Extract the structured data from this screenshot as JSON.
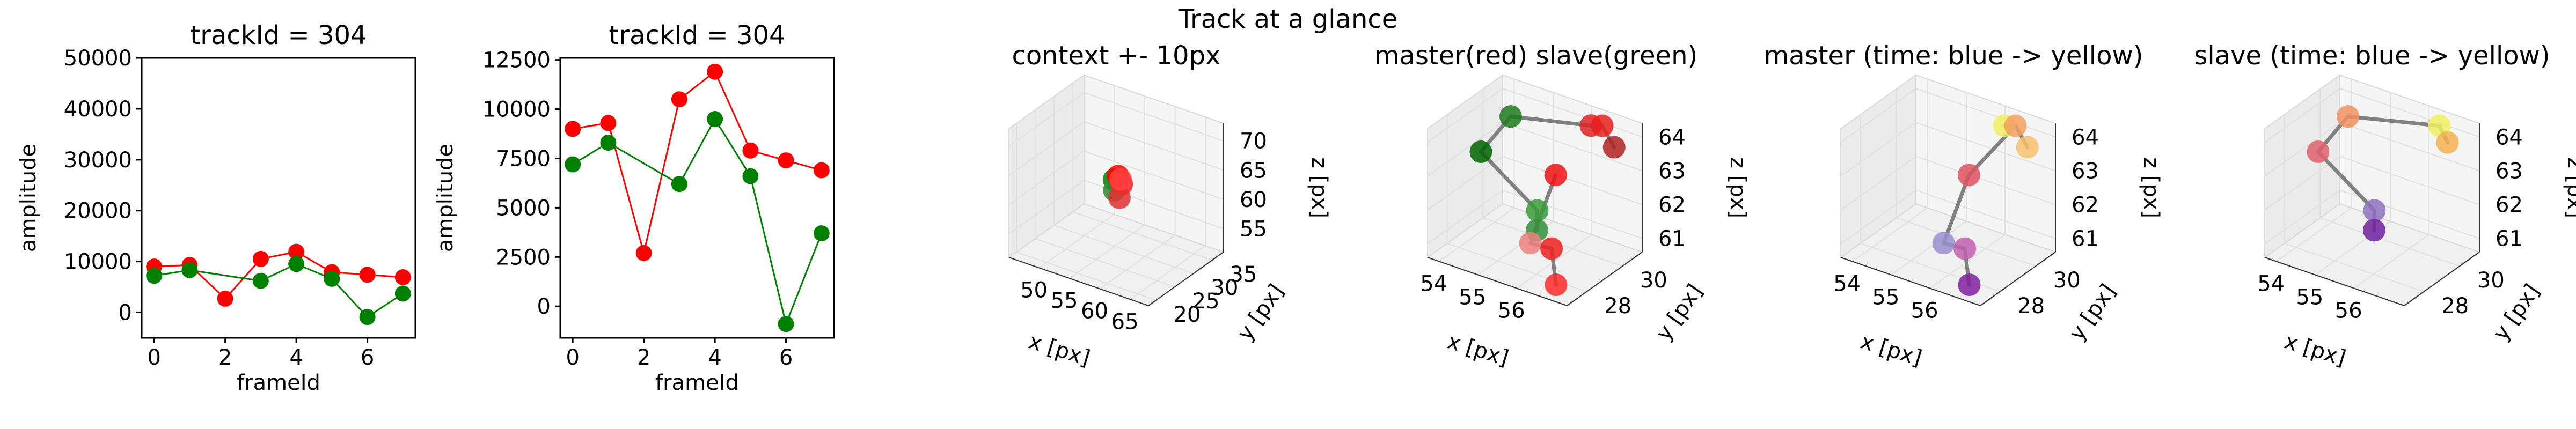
{
  "figure": {
    "suptitle": "Track at a glance"
  },
  "chart_data": [
    {
      "type": "line",
      "title": "trackId = 304",
      "xlabel": "frameId",
      "ylabel": "amplitude",
      "xlim": [
        -0.35,
        7.35
      ],
      "ylim": [
        -5000,
        50000
      ],
      "xticks": [
        0,
        2,
        4,
        6
      ],
      "yticks": [
        0,
        10000,
        20000,
        30000,
        40000,
        50000
      ],
      "x": [
        0,
        1,
        2,
        3,
        4,
        5,
        6,
        7
      ],
      "series": [
        {
          "color": "#ff0000",
          "x": [
            0,
            1,
            2,
            3,
            4,
            5,
            6,
            7
          ],
          "values": [
            9000,
            9300,
            2700,
            10500,
            11900,
            7900,
            7400,
            6900
          ]
        },
        {
          "color": "#008000",
          "x": [
            0,
            1,
            3,
            4,
            5,
            6,
            7
          ],
          "values": [
            7200,
            8300,
            6200,
            9500,
            6600,
            -900,
            3700
          ]
        }
      ]
    },
    {
      "type": "line",
      "title": "trackId = 304",
      "xlabel": "frameId",
      "ylabel": "amplitude",
      "xlim": [
        -0.35,
        7.35
      ],
      "ylim": [
        -1600,
        12600
      ],
      "xticks": [
        0,
        2,
        4,
        6
      ],
      "yticks": [
        0,
        2500,
        5000,
        7500,
        10000,
        12500
      ],
      "x": [
        0,
        1,
        2,
        3,
        4,
        5,
        6,
        7
      ],
      "series": [
        {
          "color": "#ff0000",
          "x": [
            0,
            1,
            2,
            3,
            4,
            5,
            6,
            7
          ],
          "values": [
            9000,
            9300,
            2700,
            10500,
            11900,
            7900,
            7400,
            6900
          ]
        },
        {
          "color": "#008000",
          "x": [
            0,
            1,
            3,
            4,
            5,
            6,
            7
          ],
          "values": [
            7200,
            8300,
            6200,
            9500,
            6600,
            -900,
            3700
          ]
        }
      ]
    },
    {
      "type": "scatter",
      "title": "context +- 10px",
      "xlabel": "x [px]",
      "ylabel": "y [px]",
      "zlabel": "z [px]",
      "xlim": [
        45,
        68
      ],
      "ylim": [
        18,
        38
      ],
      "zlim": [
        51,
        73
      ],
      "xticks": [
        50,
        55,
        60,
        65
      ],
      "yticks": [
        20,
        25,
        30,
        35
      ],
      "zticks": [
        55,
        60,
        65,
        70
      ],
      "points": [
        {
          "x": 55.5,
          "y": 29,
          "z": 63,
          "color": "#008000"
        },
        {
          "x": 55.8,
          "y": 28.6,
          "z": 61.5,
          "color": "#2e8b2e"
        },
        {
          "x": 56.3,
          "y": 28.8,
          "z": 64,
          "color": "#ff0000"
        },
        {
          "x": 56.6,
          "y": 29.3,
          "z": 62.5,
          "color": "#ff2020"
        },
        {
          "x": 56.9,
          "y": 28.2,
          "z": 60.8,
          "color": "#e03030"
        },
        {
          "x": 56.1,
          "y": 29.8,
          "z": 62.9,
          "color": "#ff4040"
        }
      ]
    },
    {
      "type": "scatter",
      "title": "master(red) slave(green)",
      "xlabel": "x [px]",
      "ylabel": "y [px]",
      "zlabel": "z [px]",
      "xlim": [
        53.7,
        57.3
      ],
      "ylim": [
        26.9,
        31.1
      ],
      "zlim": [
        60.6,
        64.4
      ],
      "xticks": [
        54,
        55,
        56
      ],
      "yticks": [
        28,
        30
      ],
      "zticks": [
        61,
        62,
        63,
        64
      ],
      "points": [
        {
          "x": 54.6,
          "y": 29.6,
          "z": 64.1,
          "color": "#1e7a1e"
        },
        {
          "x": 54.2,
          "y": 28.8,
          "z": 63.2,
          "color": "#006400"
        },
        {
          "x": 55.7,
          "y": 28.7,
          "z": 62.1,
          "color": "#3a9b3a"
        },
        {
          "x": 55.6,
          "y": 28.9,
          "z": 61.4,
          "color": "#30903a"
        },
        {
          "x": 56.3,
          "y": 30.4,
          "z": 64.2,
          "color": "#dd2222"
        },
        {
          "x": 56.5,
          "y": 30.6,
          "z": 64.2,
          "color": "#e82020"
        },
        {
          "x": 56.9,
          "y": 30.4,
          "z": 63.8,
          "color": "#b22222"
        },
        {
          "x": 55.9,
          "y": 29.3,
          "z": 63,
          "color": "#ee1111"
        },
        {
          "x": 55.8,
          "y": 28.1,
          "z": 61.4,
          "color": "#f08080"
        },
        {
          "x": 56.3,
          "y": 28.2,
          "z": 61.4,
          "color": "#ee2020"
        },
        {
          "x": 56.6,
          "y": 27.8,
          "z": 60.6,
          "color": "#ff2a2a"
        }
      ],
      "segments": [
        [
          0,
          1
        ],
        [
          1,
          2
        ],
        [
          2,
          3
        ],
        [
          0,
          4
        ],
        [
          4,
          5
        ],
        [
          5,
          6
        ],
        [
          7,
          8
        ],
        [
          8,
          9
        ],
        [
          9,
          10
        ]
      ]
    },
    {
      "type": "scatter",
      "title": "master (time: blue -> yellow)",
      "xlabel": "x [px]",
      "ylabel": "y [px]",
      "zlabel": "z [px]",
      "xlim": [
        53.7,
        57.3
      ],
      "ylim": [
        26.9,
        31.1
      ],
      "zlim": [
        60.6,
        64.4
      ],
      "xticks": [
        54,
        55,
        56
      ],
      "yticks": [
        28,
        30
      ],
      "zticks": [
        61,
        62,
        63,
        64
      ],
      "points": [
        {
          "x": 56.3,
          "y": 30.4,
          "z": 64.2,
          "color": "#f0f060"
        },
        {
          "x": 56.5,
          "y": 30.6,
          "z": 64.2,
          "color": "#f5a060"
        },
        {
          "x": 56.9,
          "y": 30.4,
          "z": 63.8,
          "color": "#f8c070"
        },
        {
          "x": 55.9,
          "y": 29.3,
          "z": 63,
          "color": "#e05060"
        },
        {
          "x": 55.8,
          "y": 28.1,
          "z": 61.4,
          "color": "#9890d0"
        },
        {
          "x": 56.3,
          "y": 28.2,
          "z": 61.4,
          "color": "#c060b0"
        },
        {
          "x": 56.6,
          "y": 27.8,
          "z": 60.6,
          "color": "#8020a0"
        }
      ],
      "segments": [
        [
          0,
          1
        ],
        [
          1,
          2
        ],
        [
          1,
          3
        ],
        [
          3,
          4
        ],
        [
          4,
          5
        ],
        [
          5,
          6
        ]
      ]
    },
    {
      "type": "scatter",
      "title": "slave (time: blue -> yellow)",
      "xlabel": "x [px]",
      "ylabel": "y [px]",
      "zlabel": "z [px]",
      "xlim": [
        53.7,
        57.3
      ],
      "ylim": [
        26.9,
        31.1
      ],
      "zlim": [
        60.6,
        64.4
      ],
      "xticks": [
        54,
        55,
        56
      ],
      "yticks": [
        28,
        30
      ],
      "zticks": [
        61,
        62,
        63,
        64
      ],
      "points": [
        {
          "x": 54.6,
          "y": 29.6,
          "z": 64.1,
          "color": "#f09060"
        },
        {
          "x": 54.2,
          "y": 28.8,
          "z": 63.2,
          "color": "#e06070"
        },
        {
          "x": 56.5,
          "y": 30.6,
          "z": 64.2,
          "color": "#f0f060"
        },
        {
          "x": 56.8,
          "y": 30.4,
          "z": 63.9,
          "color": "#f5b050"
        },
        {
          "x": 55.7,
          "y": 28.7,
          "z": 62.1,
          "color": "#9070c0"
        },
        {
          "x": 55.6,
          "y": 28.9,
          "z": 61.4,
          "color": "#7020a0"
        }
      ],
      "segments": [
        [
          2,
          3
        ],
        [
          2,
          0
        ],
        [
          0,
          1
        ],
        [
          1,
          4
        ],
        [
          4,
          5
        ]
      ]
    }
  ]
}
